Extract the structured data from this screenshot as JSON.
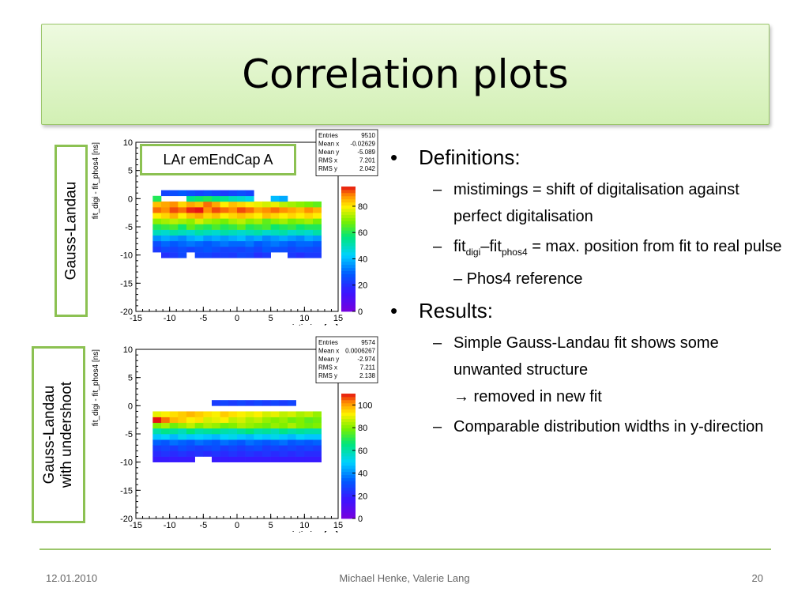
{
  "slide": {
    "title": "Correlation plots",
    "side_label_top": "Gauss-Landau",
    "side_label_bottom_line1": "Gauss-Landau",
    "side_label_bottom_line2": "with undershoot",
    "plot_caption": "LAr emEndCap A"
  },
  "bullets": {
    "definitions": {
      "label": "Definitions:",
      "item1": "mistimings = shift of digitalisation against perfect digitalisation",
      "item2_part1": "fit",
      "item2_sub1": "digi",
      "item2_part2": "–fit",
      "item2_sub2": "phos4",
      "item2_part3": " = max. position from fit to real pulse – Phos4 reference"
    },
    "results": {
      "label": "Results:",
      "item1_line1": "Simple Gauss-Landau fit shows some unwanted structure",
      "item1_line2": "→ removed in new fit",
      "item2": "Comparable distribution widths in y-direction"
    }
  },
  "footer": {
    "date": "12.01.2010",
    "authors": "Michael Henke, Valerie Lang",
    "page": "20"
  },
  "chart_data": [
    {
      "type": "heatmap",
      "xlabel": "mistiming [ns]",
      "ylabel": "fit_digi - fit_phos4 [ns]",
      "xlim": [
        -15,
        15
      ],
      "ylim": [
        -20,
        10
      ],
      "xticks": [
        "-15",
        "-10",
        "-5",
        "0",
        "5",
        "10",
        "15"
      ],
      "yticks": [
        "10",
        "5",
        "0",
        "-5",
        "-10",
        "-15",
        "-20"
      ],
      "zticks": [
        "0",
        "20",
        "40",
        "60",
        "80"
      ],
      "zmax": 95,
      "stats": [
        {
          "label": "Entries",
          "value": "9510"
        },
        {
          "label": "Mean x",
          "value": "-0.02629"
        },
        {
          "label": "Mean y",
          "value": "-5.089"
        },
        {
          "label": "RMS x",
          "value": "7.201"
        },
        {
          "label": "RMS y",
          "value": "2.042"
        }
      ],
      "cells": {
        "x0": -12.5,
        "dx": 1.25,
        "y0": -11.5,
        "dy": 1.0,
        "rows": [
          [
            0,
            0,
            0,
            0,
            0,
            0,
            0,
            0,
            0,
            0,
            0,
            0,
            0,
            0,
            0,
            0,
            0,
            0,
            0,
            0
          ],
          [
            0,
            20,
            22,
            25,
            0,
            24,
            24,
            22,
            23,
            22,
            25,
            24,
            20,
            22,
            0,
            0,
            22,
            20,
            22,
            22
          ],
          [
            22,
            25,
            24,
            26,
            24,
            26,
            28,
            26,
            24,
            25,
            24,
            26,
            24,
            28,
            26,
            26,
            24,
            26,
            25,
            24
          ],
          [
            26,
            30,
            28,
            30,
            32,
            30,
            28,
            30,
            32,
            30,
            30,
            32,
            28,
            30,
            32,
            30,
            28,
            30,
            30,
            28
          ],
          [
            35,
            38,
            36,
            34,
            38,
            40,
            36,
            38,
            36,
            38,
            40,
            36,
            38,
            34,
            36,
            38,
            36,
            34,
            38,
            36
          ],
          [
            50,
            48,
            52,
            50,
            48,
            52,
            50,
            48,
            52,
            50,
            48,
            50,
            52,
            48,
            50,
            52,
            48,
            50,
            48,
            52
          ],
          [
            60,
            62,
            64,
            58,
            66,
            62,
            60,
            64,
            60,
            62,
            66,
            60,
            62,
            64,
            58,
            60,
            62,
            58,
            60,
            60
          ],
          [
            70,
            72,
            74,
            72,
            70,
            76,
            72,
            70,
            68,
            72,
            74,
            70,
            72,
            66,
            70,
            72,
            68,
            70,
            72,
            68
          ],
          [
            80,
            82,
            85,
            80,
            84,
            86,
            82,
            84,
            80,
            82,
            84,
            82,
            80,
            84,
            82,
            80,
            82,
            80,
            82,
            80
          ],
          [
            90,
            88,
            92,
            90,
            94,
            95,
            88,
            92,
            90,
            88,
            92,
            90,
            86,
            88,
            90,
            88,
            86,
            84,
            88,
            85
          ],
          [
            84,
            86,
            88,
            82,
            86,
            84,
            90,
            86,
            80,
            84,
            82,
            80,
            78,
            76,
            78,
            74,
            72,
            70,
            68,
            66
          ],
          [
            60,
            0,
            0,
            0,
            55,
            58,
            60,
            56,
            54,
            50,
            48,
            45,
            0,
            0,
            40,
            38,
            0,
            0,
            0,
            0
          ],
          [
            0,
            24,
            26,
            28,
            26,
            24,
            26,
            24,
            22,
            24,
            26,
            24,
            0,
            0,
            0,
            0,
            0,
            0,
            0,
            0
          ]
        ]
      }
    },
    {
      "type": "heatmap",
      "xlabel": "mistiming [ns]",
      "ylabel": "fit_digi - fit_phos4 [ns]",
      "xlim": [
        -15,
        15
      ],
      "ylim": [
        -20,
        10
      ],
      "xticks": [
        "-15",
        "-10",
        "-5",
        "0",
        "5",
        "10",
        "15"
      ],
      "yticks": [
        "10",
        "5",
        "0",
        "-5",
        "-10",
        "-15",
        "-20"
      ],
      "zticks": [
        "0",
        "20",
        "40",
        "60",
        "80",
        "100"
      ],
      "zmax": 110,
      "stats": [
        {
          "label": "Entries",
          "value": "9574"
        },
        {
          "label": "Mean x",
          "value": "0.0006267"
        },
        {
          "label": "Mean y",
          "value": "-2.974"
        },
        {
          "label": "RMS x",
          "value": "7.211"
        },
        {
          "label": "RMS y",
          "value": "2.138"
        }
      ],
      "cells": {
        "x0": -12.5,
        "dx": 1.25,
        "y0": -10.0,
        "dy": 1.0,
        "rows": [
          [
            18,
            18,
            18,
            18,
            18,
            0,
            0,
            18,
            18,
            18,
            18,
            18,
            18,
            18,
            18,
            18,
            18,
            18,
            18,
            18
          ],
          [
            22,
            24,
            22,
            24,
            22,
            24,
            22,
            24,
            22,
            24,
            22,
            24,
            22,
            24,
            22,
            24,
            22,
            24,
            22,
            22
          ],
          [
            26,
            28,
            26,
            30,
            28,
            26,
            28,
            30,
            26,
            28,
            26,
            28,
            30,
            26,
            28,
            26,
            28,
            26,
            28,
            26
          ],
          [
            34,
            32,
            36,
            34,
            32,
            36,
            34,
            32,
            36,
            34,
            32,
            36,
            34,
            32,
            34,
            36,
            32,
            34,
            32,
            34
          ],
          [
            48,
            50,
            46,
            52,
            48,
            50,
            48,
            46,
            50,
            52,
            48,
            46,
            50,
            48,
            52,
            48,
            46,
            50,
            48,
            48
          ],
          [
            60,
            64,
            62,
            58,
            66,
            60,
            62,
            64,
            60,
            58,
            62,
            66,
            60,
            62,
            58,
            64,
            60,
            62,
            60,
            60
          ],
          [
            80,
            84,
            78,
            82,
            86,
            80,
            84,
            82,
            78,
            80,
            84,
            82,
            80,
            78,
            82,
            80,
            84,
            80,
            78,
            80
          ],
          [
            110,
            104,
            98,
            96,
            92,
            94,
            88,
            90,
            92,
            86,
            88,
            84,
            86,
            82,
            80,
            82,
            78,
            80,
            76,
            78
          ],
          [
            90,
            92,
            94,
            96,
            98,
            96,
            94,
            92,
            96,
            94,
            92,
            90,
            92,
            88,
            90,
            86,
            88,
            84,
            86,
            82
          ],
          [
            0,
            0,
            0,
            0,
            0,
            0,
            0,
            0,
            0,
            0,
            0,
            0,
            0,
            0,
            0,
            0,
            0,
            0,
            0,
            0
          ],
          [
            0,
            0,
            0,
            0,
            0,
            0,
            0,
            26,
            28,
            26,
            28,
            26,
            28,
            26,
            28,
            26,
            28,
            0,
            0,
            0
          ]
        ]
      }
    }
  ]
}
